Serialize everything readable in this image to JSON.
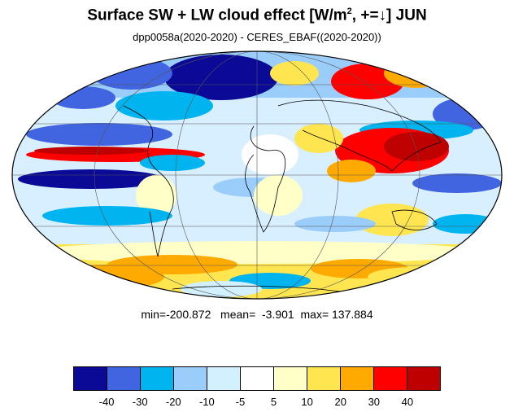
{
  "title": {
    "main_prefix": "Surface SW + LW cloud effect [W/m",
    "superscript": "2",
    "main_suffix": ", +=↓]  JUN"
  },
  "subtitle": "dpp0058a(2020-2020) - CERES_EBAF((2020-2020))",
  "stats": {
    "text": "min=-200.872   mean=  -3.901  max= 137.884"
  },
  "map": {
    "projection": "mollweide",
    "grid_lines": true
  },
  "colorbar": {
    "colors": [
      "#0a0a96",
      "#4164e1",
      "#00b4f0",
      "#9bcdfa",
      "#d2f0ff",
      "#ffffff",
      "#ffffc8",
      "#ffe650",
      "#ffaa00",
      "#ff0000",
      "#be0000"
    ],
    "labels": [
      "-40",
      "-30",
      "-20",
      "-10",
      "-5",
      "5",
      "10",
      "20",
      "30",
      "40"
    ]
  }
}
